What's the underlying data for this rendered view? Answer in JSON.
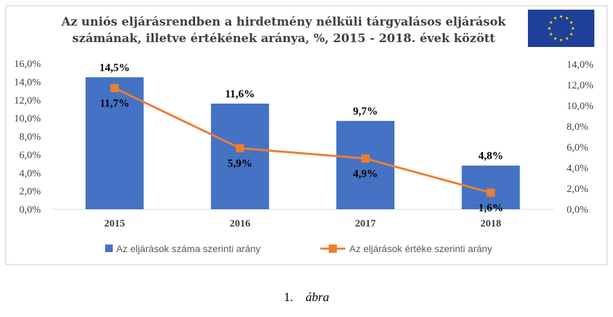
{
  "chart_data": {
    "type": "bar",
    "title_lines": [
      "Az uniós eljárásrendben a  hirdetmény nélküli tárgyalásos eljárások",
      "számának, illetve értékének aránya, %, 2015 - 2018. évek között"
    ],
    "categories": [
      "2015",
      "2016",
      "2017",
      "2018"
    ],
    "series": [
      {
        "name": "Az eljárások száma szerinti arány",
        "type": "bar",
        "axis": "left",
        "values": [
          14.5,
          11.6,
          9.7,
          4.8
        ],
        "labels": [
          "14,5%",
          "11,6%",
          "9,7%",
          "4,8%"
        ],
        "color": "#4472C4"
      },
      {
        "name": "Az eljárások értéke szerinti arány",
        "type": "line",
        "axis": "right",
        "values": [
          11.7,
          5.9,
          4.9,
          1.6
        ],
        "labels": [
          "11,7%",
          "5,9%",
          "4,9%",
          "1,6%"
        ],
        "color": "#ED7D31"
      }
    ],
    "y_left": {
      "ylim": [
        0,
        16
      ],
      "ticks": [
        "0,0%",
        "2,0%",
        "4,0%",
        "6,0%",
        "8,0%",
        "10,0%",
        "12,0%",
        "14,0%",
        "16,0%"
      ]
    },
    "y_right": {
      "ylim": [
        0,
        14
      ],
      "ticks": [
        "0,0%",
        "2,0%",
        "4,0%",
        "6,0%",
        "8,0%",
        "10,0%",
        "12,0%",
        "14,0%"
      ]
    },
    "grid": false,
    "legend": "bottom"
  },
  "flag": {
    "name": "eu-flag-icon",
    "field_color": "#1f3f99",
    "star_color": "#ffdd00"
  },
  "caption": {
    "number": "1.",
    "text": "ábra"
  }
}
